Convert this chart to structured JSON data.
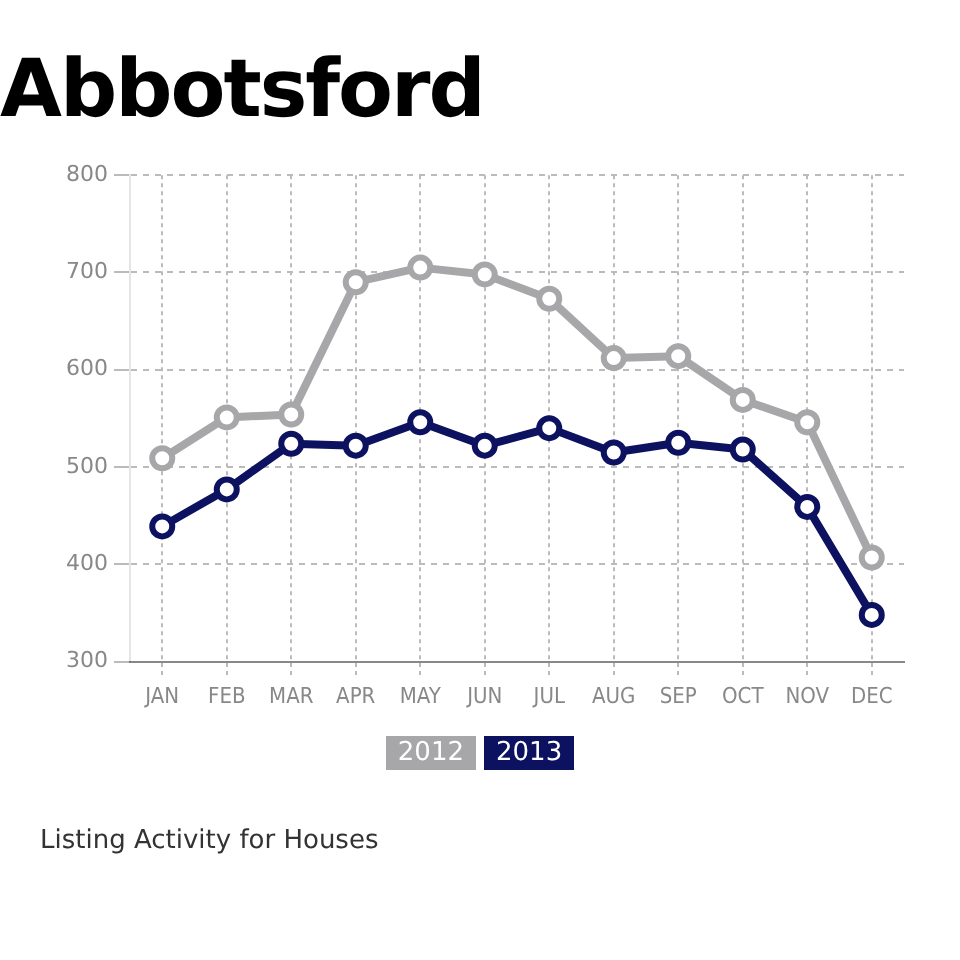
{
  "chart_data": {
    "type": "line",
    "title": "Abbotsford",
    "annotations": [
      "Listing Activity for Houses"
    ],
    "categories": [
      "JAN",
      "FEB",
      "MAR",
      "APR",
      "MAY",
      "JUN",
      "JUL",
      "AUG",
      "SEP",
      "OCT",
      "NOV",
      "DEC"
    ],
    "series": [
      {
        "name": "2012",
        "color": "#a7a7aa",
        "values": [
          509,
          551,
          554,
          690,
          705,
          698,
          673,
          612,
          614,
          569,
          546,
          407
        ]
      },
      {
        "name": "2013",
        "color": "#0d1260",
        "values": [
          439,
          477,
          524,
          522,
          546,
          522,
          540,
          515,
          525,
          518,
          459,
          348
        ]
      }
    ],
    "ylim": [
      300,
      800
    ],
    "yticks": [
      300,
      400,
      500,
      600,
      700,
      800
    ],
    "grid": true,
    "legend": "bottom",
    "marker": "circle",
    "line_style": "solid"
  }
}
